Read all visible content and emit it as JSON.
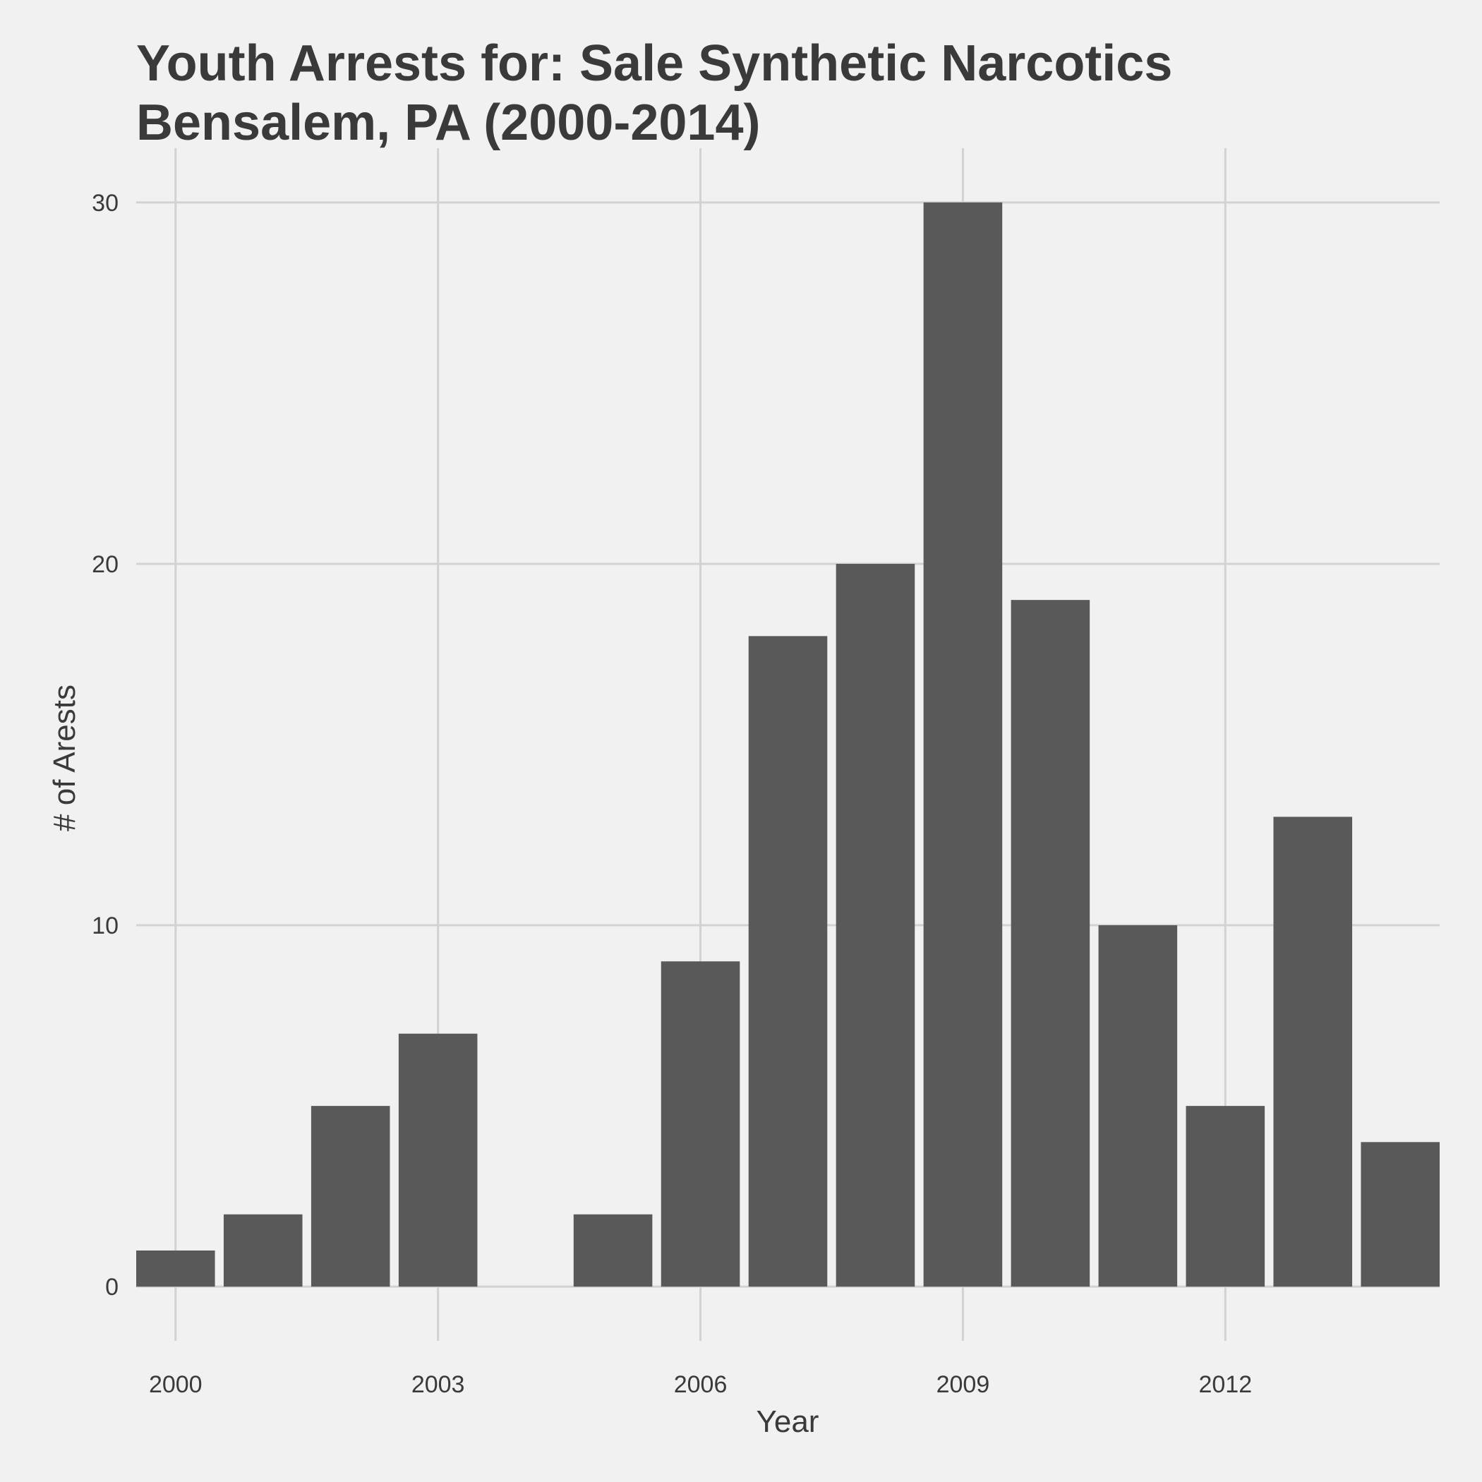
{
  "chart_data": {
    "type": "bar",
    "title_lines": [
      "Youth Arrests for: Sale Synthetic Narcotics",
      "Bensalem, PA (2000-2014)"
    ],
    "xlabel": "Year",
    "ylabel": "# of Arests",
    "x": [
      2000,
      2001,
      2002,
      2003,
      2004,
      2005,
      2006,
      2007,
      2008,
      2009,
      2010,
      2011,
      2012,
      2013,
      2014
    ],
    "values": [
      1,
      2,
      5,
      7,
      0,
      2,
      9,
      18,
      20,
      30,
      19,
      10,
      5,
      13,
      4
    ],
    "xticks": [
      2000,
      2003,
      2006,
      2009,
      2012
    ],
    "yticks": [
      0,
      10,
      20,
      30
    ],
    "xlim": [
      1999.55,
      2014.45
    ],
    "ylim": [
      -1.5,
      31.5
    ],
    "grid": true,
    "colors": {
      "background": "#f1f1f1",
      "bar": "#595959",
      "grid": "#d2d2d2",
      "text": "#3a3a3a"
    }
  }
}
